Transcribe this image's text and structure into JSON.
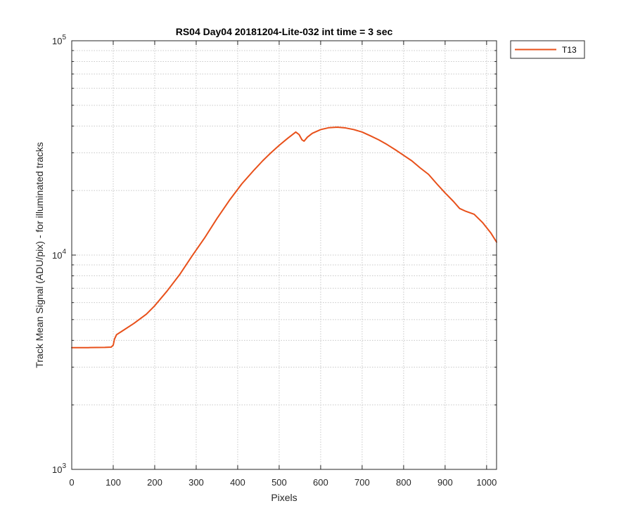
{
  "chart_data": {
    "type": "line",
    "title": "RS04 Day04 20181204-Lite-032 int time = 3 sec",
    "xlabel": "Pixels",
    "ylabel": "Track Mean Signal (ADU/pix) - for illuminated tracks",
    "xlim": [
      0,
      1024
    ],
    "ylim": [
      1000,
      100000
    ],
    "yscale": "log",
    "grid": "on, major and minor, dotted",
    "legend_location": "outside-top-right",
    "xticks": [
      0,
      100,
      200,
      300,
      400,
      500,
      600,
      700,
      800,
      900,
      1000
    ],
    "yticks": [
      {
        "value": 1000,
        "base": "10",
        "exp": "3"
      },
      {
        "value": 10000,
        "base": "10",
        "exp": "4"
      },
      {
        "value": 100000,
        "base": "10",
        "exp": "5"
      }
    ],
    "series": [
      {
        "name": "T13",
        "color": "#e8501a",
        "points": [
          [
            0,
            3700
          ],
          [
            40,
            3700
          ],
          [
            80,
            3710
          ],
          [
            95,
            3720
          ],
          [
            100,
            3800
          ],
          [
            103,
            4050
          ],
          [
            108,
            4250
          ],
          [
            120,
            4400
          ],
          [
            150,
            4800
          ],
          [
            180,
            5300
          ],
          [
            200,
            5800
          ],
          [
            230,
            6800
          ],
          [
            260,
            8100
          ],
          [
            290,
            9900
          ],
          [
            320,
            12000
          ],
          [
            350,
            14800
          ],
          [
            380,
            18000
          ],
          [
            410,
            21500
          ],
          [
            440,
            25000
          ],
          [
            460,
            27500
          ],
          [
            480,
            30000
          ],
          [
            500,
            32500
          ],
          [
            520,
            35000
          ],
          [
            540,
            37500
          ],
          [
            548,
            36500
          ],
          [
            555,
            34500
          ],
          [
            560,
            34000
          ],
          [
            568,
            35500
          ],
          [
            580,
            37000
          ],
          [
            600,
            38500
          ],
          [
            620,
            39300
          ],
          [
            640,
            39500
          ],
          [
            660,
            39200
          ],
          [
            680,
            38500
          ],
          [
            700,
            37500
          ],
          [
            720,
            36000
          ],
          [
            740,
            34500
          ],
          [
            760,
            32800
          ],
          [
            780,
            31000
          ],
          [
            800,
            29200
          ],
          [
            820,
            27500
          ],
          [
            840,
            25500
          ],
          [
            860,
            23800
          ],
          [
            880,
            21500
          ],
          [
            900,
            19500
          ],
          [
            920,
            17800
          ],
          [
            935,
            16500
          ],
          [
            950,
            16000
          ],
          [
            970,
            15500
          ],
          [
            990,
            14200
          ],
          [
            1010,
            12700
          ],
          [
            1024,
            11500
          ]
        ]
      }
    ]
  }
}
